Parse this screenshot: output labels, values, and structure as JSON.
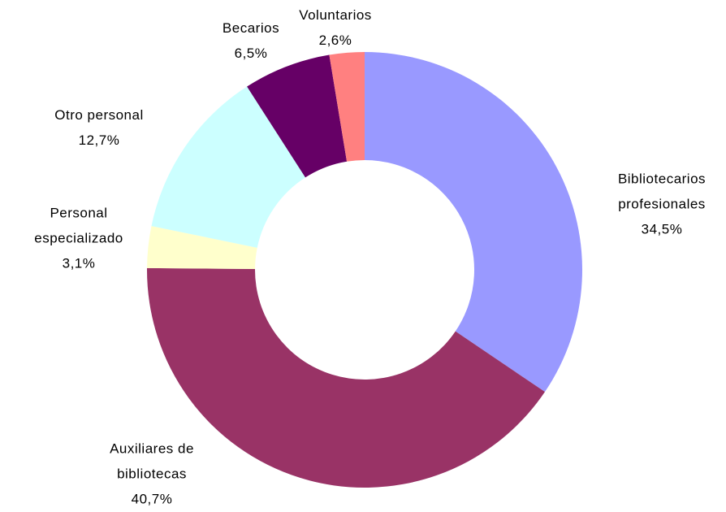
{
  "chart_data": {
    "type": "donut",
    "categories": [
      "Bibliotecarios profesionales",
      "Auxiliares de bibliotecas",
      "Personal especializado",
      "Otro personal",
      "Becarios",
      "Voluntarios"
    ],
    "values": [
      34.5,
      40.7,
      3.1,
      12.7,
      6.5,
      2.6
    ],
    "value_labels": [
      "34,5%",
      "40,7%",
      "3,1%",
      "12,7%",
      "6,5%",
      "2,6%"
    ],
    "colors": [
      "#9999ff",
      "#993366",
      "#ffffcc",
      "#ccffff",
      "#660066",
      "#ff8080"
    ]
  }
}
